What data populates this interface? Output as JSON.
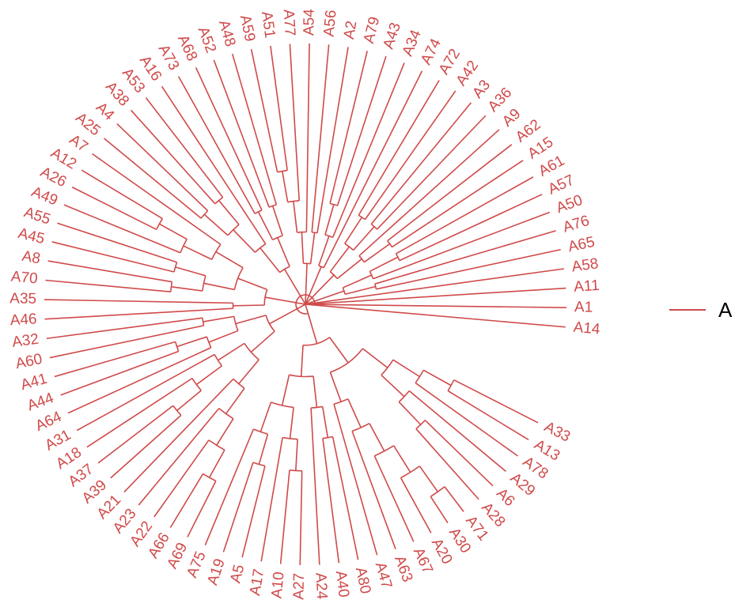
{
  "chart_data": {
    "type": "circular-dendrogram",
    "line_color": "#d04a4a",
    "legend": {
      "label": "A",
      "color": "#d04a4a",
      "position": "right"
    },
    "leaves": [
      "A14",
      "A1",
      "A11",
      "A58",
      "A65",
      "A76",
      "A50",
      "A57",
      "A61",
      "A15",
      "A62",
      "A9",
      "A36",
      "A3",
      "A42",
      "A72",
      "A74",
      "A34",
      "A43",
      "A79",
      "A2",
      "A56",
      "A54",
      "A77",
      "A51",
      "A59",
      "A48",
      "A52",
      "A68",
      "A73",
      "A16",
      "A53",
      "A38",
      "A4",
      "A25",
      "A7",
      "A12",
      "A26",
      "A49",
      "A55",
      "A45",
      "A8",
      "A70",
      "A35",
      "A46",
      "A32",
      "A60",
      "A41",
      "A44",
      "A64",
      "A31",
      "A18",
      "A37",
      "A39",
      "A21",
      "A23",
      "A22",
      "A66",
      "A69",
      "A75",
      "A19",
      "A5",
      "A17",
      "A10",
      "A27",
      "A24",
      "A40",
      "A80",
      "A47",
      "A63",
      "A67",
      "A20",
      "A30",
      "A71",
      "A28",
      "A6",
      "A29",
      "A78",
      "A13",
      "A33"
    ],
    "tree": [
      [
        [
          [
            [
              [
                "A33",
                "A13"
              ],
              "A78"
            ],
            [
              "A29",
              [
                "A6",
                "A28"
              ]
            ]
          ],
          [
            [
              [
                [
                  [
                    "A71",
                    "A30"
                  ],
                  "A20"
                ],
                "A67"
              ],
              "A63"
            ],
            "A47"
          ]
        ],
        [
          [
            [
              "A80",
              "A40"
            ],
            "A24"
          ],
          [
            [
              [
                "A27",
                "A10"
              ],
              "A17"
            ],
            [
              [
                "A5",
                "A19"
              ],
              "A75"
            ]
          ]
        ]
      ],
      [
        [
          [
            [
              [
                [
                  "A69",
                  "A66"
                ],
                "A22"
              ],
              "A23"
            ],
            "A21"
          ],
          [
            [
              [
                "A39",
                "A37"
              ],
              "A18"
            ],
            "A31"
          ]
        ],
        [
          [
            "A64",
            [
              "A44",
              "A41"
            ]
          ],
          [
            "A60",
            "A32"
          ]
        ]
      ],
      [
        [
          "A46",
          "A35"
        ],
        [
          [
            [
              "A70",
              "A8"
            ],
            [
              "A45",
              "A55"
            ]
          ],
          [
            [
              "A49",
              [
                "A26",
                "A12"
              ]
            ],
            "A7"
          ]
        ]
      ],
      [
        [
          [
            [
              "A25",
              "A4"
            ],
            [
              "A38",
              "A53"
            ]
          ],
          "A16"
        ],
        [
          [
            "A73",
            "A68"
          ],
          [
            "A52",
            "A48"
          ]
        ]
      ],
      [
        [
          [
            [
              "A59",
              "A51"
            ],
            "A77"
          ],
          "A54"
        ],
        [
          "A56",
          "A2"
        ]
      ],
      [
        [
          [
            "A79",
            "A43"
          ],
          "A34"
        ],
        "A74"
      ],
      [
        [
          [
            "A72",
            "A42"
          ],
          [
            "A3",
            "A36"
          ]
        ],
        [
          "A9",
          [
            "A62",
            "A15"
          ]
        ]
      ],
      [
        [
          [
            "A61",
            "A57"
          ],
          "A50"
        ],
        [
          "A76",
          "A65"
        ]
      ],
      "A58",
      "A11",
      "A1",
      "A14"
    ]
  }
}
